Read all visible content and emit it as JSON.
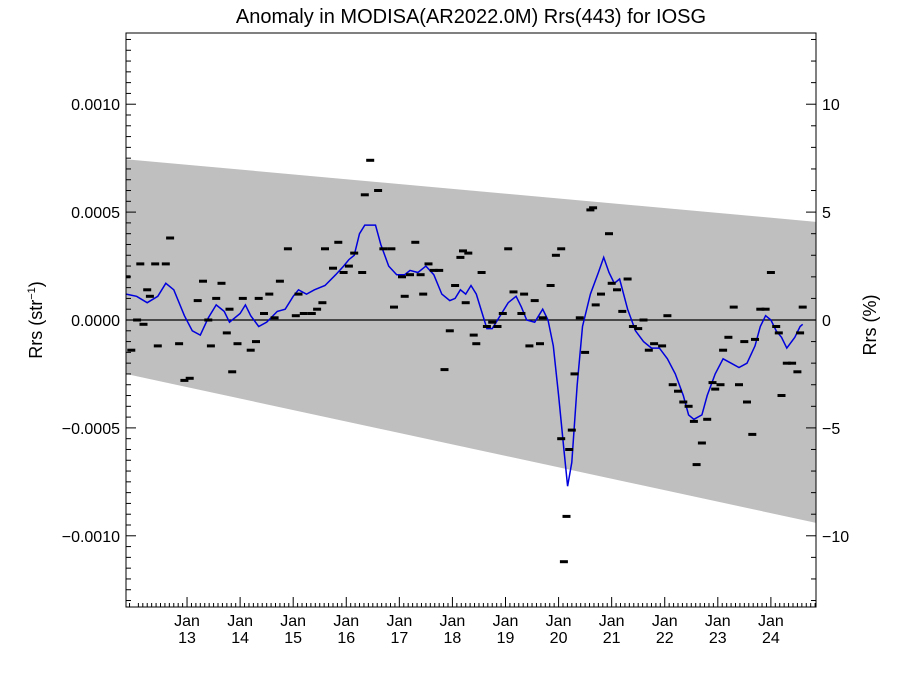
{
  "chart_data": {
    "type": "scatter",
    "title": "Anomaly in MODISA(AR2022.0M) Rrs(443) for IOSG",
    "ylabel_left": "Rrs (str",
    "ylabel_left_sup": "−1",
    "ylabel_left_close": ")",
    "ylabel_right": "Rrs (%)",
    "xlabel": "",
    "x_range": [
      2011.85,
      2024.85
    ],
    "ylim": [
      -0.00133,
      0.00133
    ],
    "ylim_right_percent": [
      -13.3,
      13.3
    ],
    "left_ticks": [
      {
        "v": 0.001,
        "label": "0.0010"
      },
      {
        "v": 0.0005,
        "label": "0.0005"
      },
      {
        "v": 0.0,
        "label": "0.0000"
      },
      {
        "v": -0.0005,
        "label": "−0.0005"
      },
      {
        "v": -0.001,
        "label": "−0.0010"
      }
    ],
    "right_ticks": [
      {
        "v": 10,
        "label": "10"
      },
      {
        "v": 5,
        "label": "5"
      },
      {
        "v": 0,
        "label": "0"
      },
      {
        "v": -5,
        "label": "−5"
      },
      {
        "v": -10,
        "label": "−10"
      }
    ],
    "x_ticks": [
      {
        "x": 2013.0,
        "top": "Jan",
        "bottom": "13"
      },
      {
        "x": 2014.0,
        "top": "Jan",
        "bottom": "14"
      },
      {
        "x": 2015.0,
        "top": "Jan",
        "bottom": "15"
      },
      {
        "x": 2016.0,
        "top": "Jan",
        "bottom": "16"
      },
      {
        "x": 2017.0,
        "top": "Jan",
        "bottom": "17"
      },
      {
        "x": 2018.0,
        "top": "Jan",
        "bottom": "18"
      },
      {
        "x": 2019.0,
        "top": "Jan",
        "bottom": "19"
      },
      {
        "x": 2020.0,
        "top": "Jan",
        "bottom": "20"
      },
      {
        "x": 2021.0,
        "top": "Jan",
        "bottom": "21"
      },
      {
        "x": 2022.0,
        "top": "Jan",
        "bottom": "22"
      },
      {
        "x": 2023.0,
        "top": "Jan",
        "bottom": "23"
      },
      {
        "x": 2024.0,
        "top": "Jan",
        "bottom": "24"
      }
    ],
    "envelope": {
      "upper": [
        [
          2011.85,
          0.000745
        ],
        [
          2024.85,
          0.000455
        ]
      ],
      "lower": [
        [
          2011.85,
          -0.00025
        ],
        [
          2024.85,
          -0.00094
        ]
      ]
    },
    "colors": {
      "envelope": "#bfbfbf",
      "smooth_line": "#0000dd",
      "points": "#000000",
      "zero_line": "#000000"
    },
    "smooth": [
      [
        2011.85,
        0.00012
      ],
      [
        2012.05,
        0.00011
      ],
      [
        2012.25,
        8e-05
      ],
      [
        2012.45,
        0.00011
      ],
      [
        2012.6,
        0.00017
      ],
      [
        2012.75,
        0.00014
      ],
      [
        2012.95,
        2e-05
      ],
      [
        2013.1,
        -5e-05
      ],
      [
        2013.25,
        -7e-05
      ],
      [
        2013.4,
        1e-05
      ],
      [
        2013.55,
        7e-05
      ],
      [
        2013.7,
        4e-05
      ],
      [
        2013.8,
        -1e-05
      ],
      [
        2014.0,
        3e-05
      ],
      [
        2014.1,
        7e-05
      ],
      [
        2014.2,
        2e-05
      ],
      [
        2014.35,
        -3e-05
      ],
      [
        2014.5,
        -1e-05
      ],
      [
        2014.7,
        4e-05
      ],
      [
        2014.85,
        5e-05
      ],
      [
        2015.0,
        0.00011
      ],
      [
        2015.1,
        0.00014
      ],
      [
        2015.25,
        0.00012
      ],
      [
        2015.4,
        0.00014
      ],
      [
        2015.6,
        0.00016
      ],
      [
        2015.8,
        0.00021
      ],
      [
        2015.95,
        0.00025
      ],
      [
        2016.05,
        0.00028
      ],
      [
        2016.15,
        0.0003
      ],
      [
        2016.25,
        0.0004
      ],
      [
        2016.35,
        0.00044
      ],
      [
        2016.55,
        0.00044
      ],
      [
        2016.65,
        0.00035
      ],
      [
        2016.8,
        0.00025
      ],
      [
        2016.95,
        0.00021
      ],
      [
        2017.1,
        0.00021
      ],
      [
        2017.2,
        0.00023
      ],
      [
        2017.35,
        0.00022
      ],
      [
        2017.5,
        0.00025
      ],
      [
        2017.65,
        0.00021
      ],
      [
        2017.8,
        0.00012
      ],
      [
        2017.95,
        9e-05
      ],
      [
        2018.05,
        0.0001
      ],
      [
        2018.15,
        0.00014
      ],
      [
        2018.25,
        0.00012
      ],
      [
        2018.35,
        0.00016
      ],
      [
        2018.45,
        0.00012
      ],
      [
        2018.55,
        4e-05
      ],
      [
        2018.65,
        -4e-05
      ],
      [
        2018.75,
        -4e-05
      ],
      [
        2018.9,
        2e-05
      ],
      [
        2019.05,
        8e-05
      ],
      [
        2019.2,
        0.00011
      ],
      [
        2019.3,
        6e-05
      ],
      [
        2019.4,
        0.0
      ],
      [
        2019.55,
        -1e-05
      ],
      [
        2019.7,
        5e-05
      ],
      [
        2019.8,
        0.0
      ],
      [
        2019.9,
        -0.00012
      ],
      [
        2020.0,
        -0.00035
      ],
      [
        2020.1,
        -0.0006
      ],
      [
        2020.17,
        -0.00077
      ],
      [
        2020.25,
        -0.00066
      ],
      [
        2020.35,
        -0.0003
      ],
      [
        2020.45,
        -3e-05
      ],
      [
        2020.6,
        0.00012
      ],
      [
        2020.75,
        0.00022
      ],
      [
        2020.85,
        0.00029
      ],
      [
        2020.95,
        0.00022
      ],
      [
        2021.05,
        0.00017
      ],
      [
        2021.15,
        0.00019
      ],
      [
        2021.3,
        5e-05
      ],
      [
        2021.45,
        -5e-05
      ],
      [
        2021.6,
        -0.0001
      ],
      [
        2021.75,
        -0.00013
      ],
      [
        2021.9,
        -0.00013
      ],
      [
        2022.05,
        -0.00018
      ],
      [
        2022.2,
        -0.00025
      ],
      [
        2022.35,
        -0.00035
      ],
      [
        2022.45,
        -0.00044
      ],
      [
        2022.55,
        -0.00046
      ],
      [
        2022.7,
        -0.00044
      ],
      [
        2022.8,
        -0.00035
      ],
      [
        2022.95,
        -0.00025
      ],
      [
        2023.1,
        -0.00018
      ],
      [
        2023.25,
        -0.0002
      ],
      [
        2023.4,
        -0.00022
      ],
      [
        2023.55,
        -0.0002
      ],
      [
        2023.7,
        -0.00012
      ],
      [
        2023.8,
        -3e-05
      ],
      [
        2023.9,
        2e-05
      ],
      [
        2024.0,
        0.0
      ],
      [
        2024.1,
        -5e-05
      ],
      [
        2024.2,
        -8e-05
      ],
      [
        2024.3,
        -0.00013
      ],
      [
        2024.45,
        -8e-05
      ],
      [
        2024.55,
        -3e-05
      ],
      [
        2024.6,
        -2e-05
      ]
    ],
    "points": [
      [
        2011.86,
        0.0002
      ],
      [
        2011.95,
        -0.00014
      ],
      [
        2012.06,
        0.0
      ],
      [
        2012.12,
        0.00026
      ],
      [
        2012.18,
        -2e-05
      ],
      [
        2012.25,
        0.00014
      ],
      [
        2012.3,
        0.00011
      ],
      [
        2012.4,
        0.00026
      ],
      [
        2012.45,
        -0.00012
      ],
      [
        2012.6,
        0.00026
      ],
      [
        2012.68,
        0.00038
      ],
      [
        2012.85,
        -0.00011
      ],
      [
        2012.95,
        -0.00028
      ],
      [
        2013.05,
        -0.00027
      ],
      [
        2013.2,
        9e-05
      ],
      [
        2013.3,
        0.00018
      ],
      [
        2013.4,
        0.0
      ],
      [
        2013.45,
        -0.00012
      ],
      [
        2013.55,
        0.0001
      ],
      [
        2013.65,
        0.00017
      ],
      [
        2013.75,
        -6e-05
      ],
      [
        2013.8,
        5e-05
      ],
      [
        2013.85,
        -0.00024
      ],
      [
        2013.95,
        -0.00011
      ],
      [
        2014.05,
        0.0001
      ],
      [
        2014.2,
        -0.00014
      ],
      [
        2014.3,
        -0.0001
      ],
      [
        2014.35,
        0.0001
      ],
      [
        2014.45,
        3e-05
      ],
      [
        2014.55,
        0.00012
      ],
      [
        2014.65,
        1e-05
      ],
      [
        2014.75,
        0.00018
      ],
      [
        2014.9,
        0.00033
      ],
      [
        2015.05,
        2e-05
      ],
      [
        2015.1,
        0.00012
      ],
      [
        2015.2,
        3e-05
      ],
      [
        2015.35,
        3e-05
      ],
      [
        2015.45,
        5e-05
      ],
      [
        2015.55,
        8e-05
      ],
      [
        2015.6,
        0.00033
      ],
      [
        2015.75,
        0.00024
      ],
      [
        2015.85,
        0.00036
      ],
      [
        2015.95,
        0.00022
      ],
      [
        2016.05,
        0.00025
      ],
      [
        2016.15,
        0.00031
      ],
      [
        2016.3,
        0.00022
      ],
      [
        2016.35,
        0.00058
      ],
      [
        2016.45,
        0.00074
      ],
      [
        2016.6,
        0.0006
      ],
      [
        2016.7,
        0.00033
      ],
      [
        2016.85,
        0.00033
      ],
      [
        2016.9,
        6e-05
      ],
      [
        2017.05,
        0.0002
      ],
      [
        2017.1,
        0.00011
      ],
      [
        2017.2,
        0.00021
      ],
      [
        2017.3,
        0.00036
      ],
      [
        2017.4,
        0.00021
      ],
      [
        2017.45,
        0.00012
      ],
      [
        2017.55,
        0.00026
      ],
      [
        2017.65,
        0.00023
      ],
      [
        2017.75,
        0.00023
      ],
      [
        2017.85,
        -0.00023
      ],
      [
        2017.95,
        -5e-05
      ],
      [
        2018.05,
        0.00016
      ],
      [
        2018.15,
        0.00029
      ],
      [
        2018.2,
        0.00032
      ],
      [
        2018.25,
        8e-05
      ],
      [
        2018.3,
        0.00031
      ],
      [
        2018.4,
        -7e-05
      ],
      [
        2018.45,
        -0.00011
      ],
      [
        2018.55,
        0.00022
      ],
      [
        2018.65,
        -3e-05
      ],
      [
        2018.75,
        -1e-05
      ],
      [
        2018.85,
        -3e-05
      ],
      [
        2018.95,
        3e-05
      ],
      [
        2019.05,
        0.00033
      ],
      [
        2019.15,
        0.00013
      ],
      [
        2019.3,
        3e-05
      ],
      [
        2019.35,
        0.00012
      ],
      [
        2019.45,
        -0.00012
      ],
      [
        2019.55,
        9e-05
      ],
      [
        2019.65,
        -0.00011
      ],
      [
        2019.7,
        1e-05
      ],
      [
        2019.85,
        0.00016
      ],
      [
        2019.95,
        0.0003
      ],
      [
        2020.05,
        0.00033
      ],
      [
        2020.05,
        -0.00055
      ],
      [
        2020.1,
        -0.00112
      ],
      [
        2020.15,
        -0.00091
      ],
      [
        2020.2,
        -0.0006
      ],
      [
        2020.25,
        -0.00051
      ],
      [
        2020.3,
        -0.00025
      ],
      [
        2020.4,
        1e-05
      ],
      [
        2020.5,
        -0.00015
      ],
      [
        2020.6,
        0.00051
      ],
      [
        2020.65,
        0.00052
      ],
      [
        2020.7,
        7e-05
      ],
      [
        2020.8,
        0.00012
      ],
      [
        2020.95,
        0.0004
      ],
      [
        2021.0,
        0.00017
      ],
      [
        2021.1,
        0.00014
      ],
      [
        2021.2,
        4e-05
      ],
      [
        2021.3,
        0.00019
      ],
      [
        2021.4,
        -3e-05
      ],
      [
        2021.5,
        -4e-05
      ],
      [
        2021.6,
        0.0
      ],
      [
        2021.7,
        -0.00014
      ],
      [
        2021.8,
        -0.00011
      ],
      [
        2021.95,
        -0.00012
      ],
      [
        2022.05,
        2e-05
      ],
      [
        2022.15,
        -0.0003
      ],
      [
        2022.25,
        -0.00033
      ],
      [
        2022.35,
        -0.00038
      ],
      [
        2022.45,
        -0.0004
      ],
      [
        2022.55,
        -0.00047
      ],
      [
        2022.6,
        -0.00067
      ],
      [
        2022.7,
        -0.00057
      ],
      [
        2022.8,
        -0.00046
      ],
      [
        2022.9,
        -0.00029
      ],
      [
        2022.95,
        -0.00032
      ],
      [
        2023.05,
        -0.0003
      ],
      [
        2023.1,
        -0.00014
      ],
      [
        2023.2,
        -8e-05
      ],
      [
        2023.3,
        6e-05
      ],
      [
        2023.4,
        -0.0003
      ],
      [
        2023.5,
        -0.0001
      ],
      [
        2023.55,
        -0.00038
      ],
      [
        2023.65,
        -0.00053
      ],
      [
        2023.7,
        -9e-05
      ],
      [
        2023.8,
        5e-05
      ],
      [
        2023.9,
        5e-05
      ],
      [
        2024.0,
        0.00022
      ],
      [
        2024.1,
        -3e-05
      ],
      [
        2024.15,
        -6e-05
      ],
      [
        2024.2,
        -0.00035
      ],
      [
        2024.3,
        -0.0002
      ],
      [
        2024.4,
        -0.0002
      ],
      [
        2024.5,
        -0.00024
      ],
      [
        2024.55,
        -6e-05
      ],
      [
        2024.6,
        6e-05
      ]
    ]
  }
}
